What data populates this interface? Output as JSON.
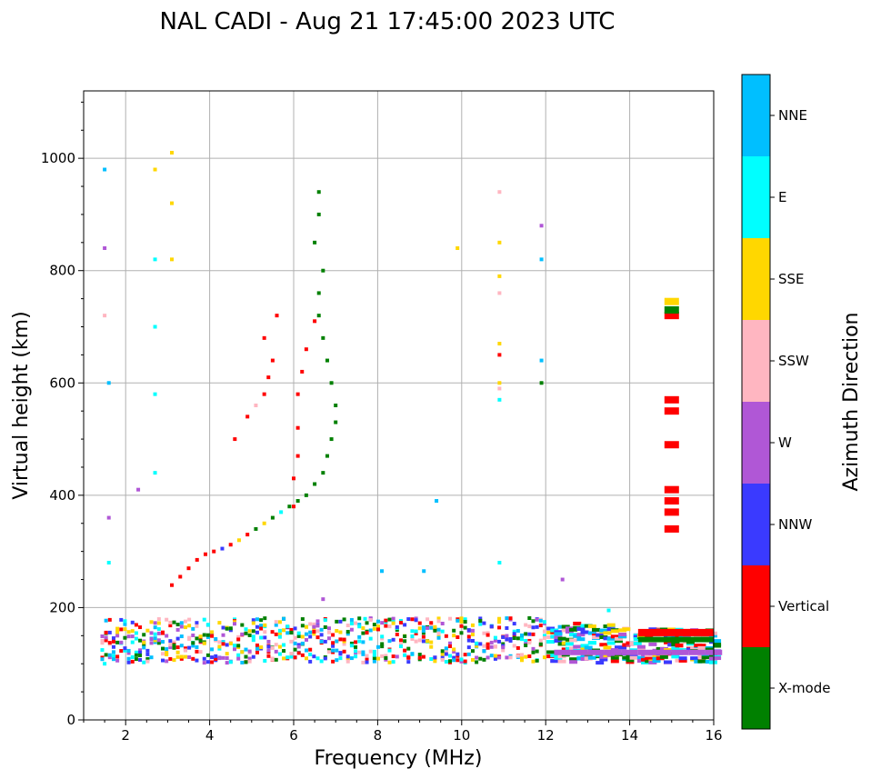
{
  "chart_data": {
    "type": "scatter",
    "title": "NAL CADI - Aug 21 17:45:00 2023 UTC",
    "xlabel": "Frequency (MHz)",
    "ylabel": "Virtual height (km)",
    "xlim": [
      1,
      16
    ],
    "ylim": [
      0,
      1120
    ],
    "xticks": [
      2,
      4,
      6,
      8,
      10,
      12,
      14,
      16
    ],
    "yticks": [
      0,
      200,
      400,
      600,
      800,
      1000
    ],
    "grid": true,
    "colorbar": {
      "label": "Azimuth Direction",
      "categories": [
        {
          "name": "X-mode",
          "color": "#008000"
        },
        {
          "name": "Vertical",
          "color": "#ff0000"
        },
        {
          "name": "NNW",
          "color": "#3a3aff"
        },
        {
          "name": "W",
          "color": "#b057d6"
        },
        {
          "name": "SSW",
          "color": "#ffb6c1"
        },
        {
          "name": "SSE",
          "color": "#ffd700"
        },
        {
          "name": "E",
          "color": "#00ffff"
        },
        {
          "name": "NNE",
          "color": "#00bfff"
        }
      ]
    },
    "series": [
      {
        "name": "F-layer trace",
        "points": [
          [
            3.1,
            240,
            "Vertical"
          ],
          [
            3.3,
            255,
            "Vertical"
          ],
          [
            3.5,
            270,
            "Vertical"
          ],
          [
            3.7,
            285,
            "Vertical"
          ],
          [
            3.9,
            295,
            "Vertical"
          ],
          [
            4.1,
            300,
            "Vertical"
          ],
          [
            4.3,
            305,
            "NNW"
          ],
          [
            4.5,
            312,
            "Vertical"
          ],
          [
            4.7,
            320,
            "SSE"
          ],
          [
            4.9,
            330,
            "Vertical"
          ],
          [
            5.1,
            340,
            "X-mode"
          ],
          [
            5.3,
            350,
            "SSE"
          ],
          [
            5.5,
            360,
            "X-mode"
          ],
          [
            5.7,
            370,
            "E"
          ],
          [
            5.9,
            380,
            "X-mode"
          ],
          [
            6.1,
            390,
            "X-mode"
          ],
          [
            6.3,
            400,
            "X-mode"
          ],
          [
            6.5,
            420,
            "X-mode"
          ],
          [
            6.7,
            440,
            "X-mode"
          ],
          [
            6.8,
            470,
            "X-mode"
          ],
          [
            6.9,
            500,
            "X-mode"
          ],
          [
            7.0,
            530,
            "X-mode"
          ],
          [
            7.0,
            560,
            "X-mode"
          ],
          [
            6.9,
            600,
            "X-mode"
          ],
          [
            6.8,
            640,
            "X-mode"
          ],
          [
            6.7,
            680,
            "X-mode"
          ],
          [
            6.6,
            720,
            "X-mode"
          ],
          [
            6.6,
            760,
            "X-mode"
          ],
          [
            6.7,
            800,
            "X-mode"
          ],
          [
            6.5,
            850,
            "X-mode"
          ],
          [
            6.6,
            900,
            "X-mode"
          ],
          [
            6.6,
            940,
            "X-mode"
          ]
        ]
      },
      {
        "name": "Lower F trace",
        "points": [
          [
            4.6,
            500,
            "Vertical"
          ],
          [
            4.9,
            540,
            "Vertical"
          ],
          [
            5.1,
            560,
            "SSW"
          ],
          [
            5.3,
            580,
            "Vertical"
          ],
          [
            5.4,
            610,
            "Vertical"
          ],
          [
            5.5,
            640,
            "Vertical"
          ],
          [
            5.3,
            680,
            "Vertical"
          ],
          [
            5.6,
            720,
            "Vertical"
          ],
          [
            6.0,
            380,
            "Vertical"
          ],
          [
            6.0,
            430,
            "Vertical"
          ],
          [
            6.1,
            470,
            "Vertical"
          ],
          [
            6.1,
            520,
            "Vertical"
          ],
          [
            6.1,
            580,
            "Vertical"
          ],
          [
            6.2,
            620,
            "Vertical"
          ],
          [
            6.3,
            660,
            "Vertical"
          ],
          [
            6.5,
            710,
            "Vertical"
          ]
        ]
      },
      {
        "name": "Column 10.9 MHz",
        "points": [
          [
            10.9,
            280,
            "E"
          ],
          [
            10.9,
            570,
            "E"
          ],
          [
            10.9,
            590,
            "SSW"
          ],
          [
            10.9,
            600,
            "SSE"
          ],
          [
            10.9,
            650,
            "Vertical"
          ],
          [
            10.9,
            670,
            "SSE"
          ],
          [
            10.9,
            760,
            "SSW"
          ],
          [
            10.9,
            790,
            "SSE"
          ],
          [
            10.9,
            850,
            "SSE"
          ],
          [
            10.9,
            940,
            "SSW"
          ]
        ]
      },
      {
        "name": "Column 15 MHz",
        "points": [
          [
            15.0,
            340,
            "Vertical"
          ],
          [
            15.0,
            370,
            "Vertical"
          ],
          [
            15.0,
            390,
            "Vertical"
          ],
          [
            15.0,
            410,
            "Vertical"
          ],
          [
            15.0,
            490,
            "Vertical"
          ],
          [
            15.0,
            550,
            "Vertical"
          ],
          [
            15.0,
            570,
            "Vertical"
          ],
          [
            15.0,
            720,
            "Vertical"
          ],
          [
            15.0,
            730,
            "X-mode"
          ],
          [
            15.0,
            745,
            "SSE"
          ]
        ]
      },
      {
        "name": "Sparse high echoes",
        "points": [
          [
            1.5,
            980,
            "NNE"
          ],
          [
            1.5,
            840,
            "W"
          ],
          [
            1.5,
            720,
            "SSW"
          ],
          [
            1.6,
            600,
            "NNE"
          ],
          [
            1.6,
            360,
            "W"
          ],
          [
            1.6,
            280,
            "E"
          ],
          [
            1.5,
            100,
            "E"
          ],
          [
            2.7,
            980,
            "SSE"
          ],
          [
            2.7,
            820,
            "E"
          ],
          [
            2.7,
            700,
            "E"
          ],
          [
            2.7,
            580,
            "E"
          ],
          [
            2.7,
            440,
            "E"
          ],
          [
            3.1,
            1010,
            "SSE"
          ],
          [
            3.1,
            920,
            "SSE"
          ],
          [
            3.1,
            820,
            "SSE"
          ],
          [
            9.4,
            390,
            "NNE"
          ],
          [
            11.9,
            880,
            "W"
          ],
          [
            11.9,
            820,
            "NNE"
          ],
          [
            11.9,
            640,
            "NNE"
          ],
          [
            11.9,
            600,
            "X-mode"
          ],
          [
            8.1,
            265,
            "NNE"
          ],
          [
            9.1,
            265,
            "NNE"
          ],
          [
            12.4,
            250,
            "W"
          ],
          [
            13.5,
            195,
            "E"
          ],
          [
            9.9,
            840,
            "SSE"
          ],
          [
            7.7,
            180,
            "E"
          ],
          [
            6.7,
            215,
            "W"
          ],
          [
            2.3,
            410,
            "W"
          ]
        ]
      },
      {
        "name": "E-layer band",
        "freq_range": [
          1.4,
          16
        ],
        "height_range": [
          90,
          185
        ]
      }
    ]
  }
}
